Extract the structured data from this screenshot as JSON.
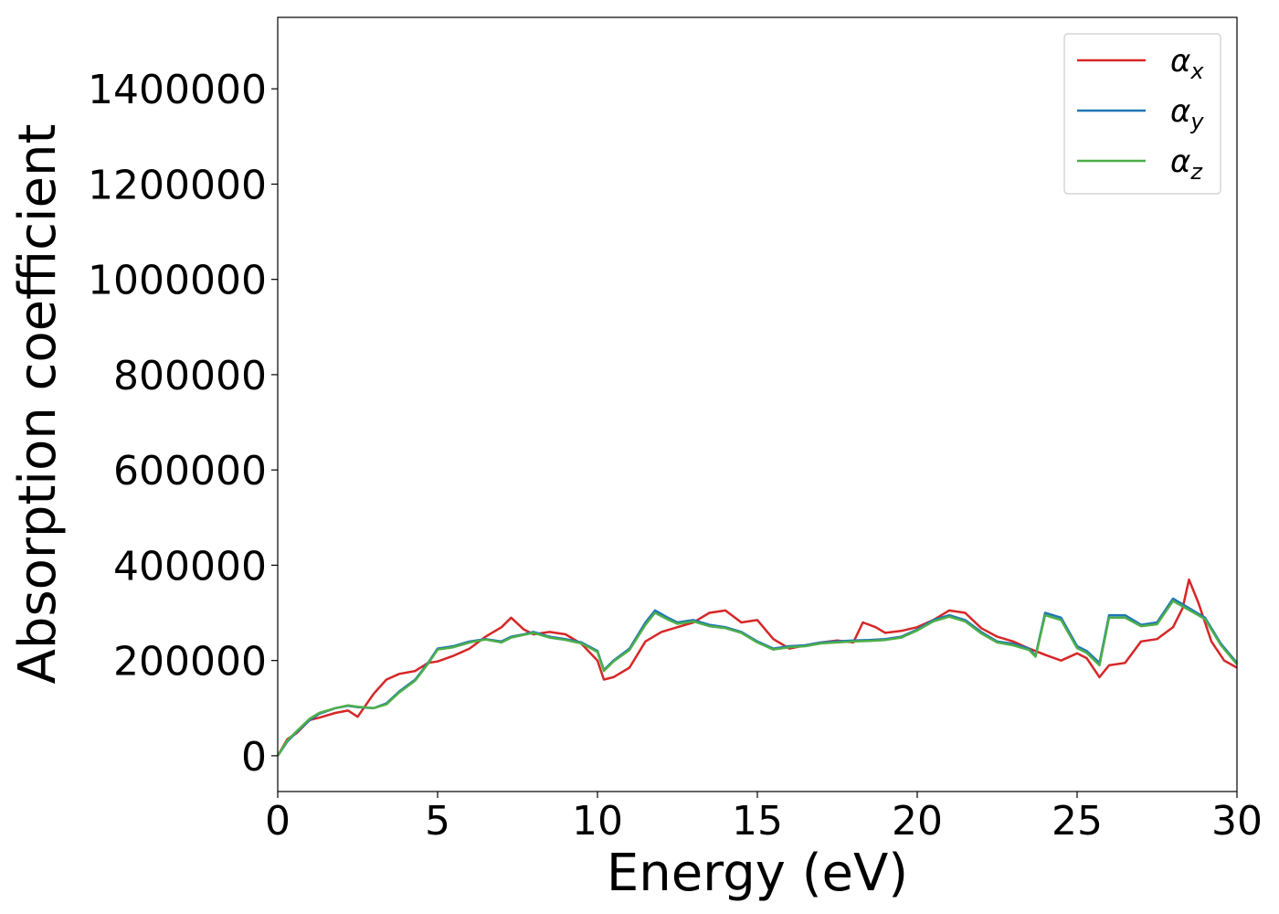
{
  "chart_data": {
    "type": "line",
    "xlabel": "Energy (eV)",
    "ylabel": "Absorption coefficient",
    "xlim": [
      0,
      30
    ],
    "ylim": [
      -75000,
      1550000
    ],
    "xticks": [
      0,
      5,
      10,
      15,
      20,
      25,
      30
    ],
    "yticks": [
      0,
      200000,
      400000,
      600000,
      800000,
      1000000,
      1200000,
      1400000
    ],
    "grid": false,
    "legend_position": "top-right",
    "series": [
      {
        "name": "α",
        "subscript": "x",
        "color": "#d62728",
        "x": [
          0,
          0.3,
          0.6,
          1.0,
          1.3,
          1.8,
          2.2,
          2.5,
          3.0,
          3.4,
          3.8,
          4.3,
          4.7,
          5.0,
          5.5,
          6.0,
          6.5,
          7.0,
          7.3,
          7.7,
          8.0,
          8.5,
          9.0,
          9.5,
          10.0,
          10.2,
          10.5,
          11.0,
          11.5,
          12.0,
          12.5,
          13.0,
          13.5,
          14.0,
          14.5,
          15.0,
          15.5,
          16.0,
          16.5,
          17.0,
          17.5,
          18.0,
          18.3,
          18.7,
          19.0,
          19.5,
          20.0,
          20.5,
          21.0,
          21.5,
          22.0,
          22.5,
          23.0,
          23.5,
          24.0,
          24.5,
          25.0,
          25.3,
          25.7,
          26.0,
          26.5,
          27.0,
          27.5,
          28.0,
          28.3,
          28.5,
          28.8,
          29.2,
          29.6,
          30.0
        ],
        "values": [
          0,
          35000,
          48000,
          75000,
          80000,
          90000,
          95000,
          82000,
          130000,
          160000,
          172000,
          178000,
          195000,
          198000,
          210000,
          225000,
          250000,
          270000,
          290000,
          265000,
          255000,
          260000,
          255000,
          235000,
          200000,
          160000,
          165000,
          185000,
          240000,
          260000,
          270000,
          280000,
          300000,
          305000,
          280000,
          285000,
          245000,
          225000,
          232000,
          238000,
          242000,
          238000,
          280000,
          270000,
          258000,
          262000,
          270000,
          285000,
          305000,
          300000,
          268000,
          250000,
          240000,
          225000,
          212000,
          200000,
          215000,
          205000,
          165000,
          190000,
          195000,
          240000,
          245000,
          270000,
          310000,
          370000,
          320000,
          240000,
          200000,
          185000
        ]
      },
      {
        "name": "α",
        "subscript": "y",
        "color": "#1f77b4",
        "x": [
          0,
          0.3,
          0.6,
          1.0,
          1.3,
          1.8,
          2.2,
          2.5,
          3.0,
          3.4,
          3.8,
          4.3,
          4.7,
          5.0,
          5.5,
          6.0,
          6.5,
          7.0,
          7.3,
          7.7,
          8.0,
          8.5,
          9.0,
          9.5,
          10.0,
          10.2,
          10.5,
          11.0,
          11.5,
          11.8,
          12.2,
          12.5,
          13.0,
          13.5,
          14.0,
          14.5,
          15.0,
          15.5,
          16.0,
          16.5,
          17.0,
          17.5,
          18.0,
          18.5,
          19.0,
          19.5,
          20.0,
          20.5,
          21.0,
          21.5,
          22.0,
          22.5,
          23.0,
          23.5,
          23.7,
          24.0,
          24.5,
          25.0,
          25.3,
          25.7,
          26.0,
          26.5,
          27.0,
          27.5,
          28.0,
          28.5,
          29.0,
          29.5,
          30.0
        ],
        "values": [
          0,
          30000,
          50000,
          75000,
          88000,
          100000,
          105000,
          102000,
          100000,
          110000,
          135000,
          160000,
          195000,
          225000,
          230000,
          240000,
          245000,
          240000,
          250000,
          255000,
          260000,
          250000,
          245000,
          238000,
          220000,
          180000,
          200000,
          225000,
          280000,
          305000,
          290000,
          280000,
          285000,
          275000,
          270000,
          260000,
          240000,
          225000,
          230000,
          232000,
          238000,
          240000,
          242000,
          243000,
          245000,
          250000,
          265000,
          285000,
          295000,
          285000,
          260000,
          240000,
          235000,
          225000,
          210000,
          300000,
          290000,
          230000,
          220000,
          195000,
          295000,
          295000,
          275000,
          280000,
          330000,
          310000,
          290000,
          235000,
          195000
        ]
      },
      {
        "name": "α",
        "subscript": "z",
        "color": "#4daf4a",
        "x": [
          0,
          0.3,
          0.6,
          1.0,
          1.3,
          1.8,
          2.2,
          2.5,
          3.0,
          3.4,
          3.8,
          4.3,
          4.7,
          5.0,
          5.5,
          6.0,
          6.5,
          7.0,
          7.3,
          7.7,
          8.0,
          8.5,
          9.0,
          9.5,
          10.0,
          10.2,
          10.5,
          11.0,
          11.5,
          11.8,
          12.2,
          12.5,
          13.0,
          13.5,
          14.0,
          14.5,
          15.0,
          15.5,
          16.0,
          16.5,
          17.0,
          17.5,
          18.0,
          18.5,
          19.0,
          19.5,
          20.0,
          20.5,
          21.0,
          21.5,
          22.0,
          22.5,
          23.0,
          23.5,
          23.7,
          24.0,
          24.5,
          25.0,
          25.3,
          25.7,
          26.0,
          26.5,
          27.0,
          27.5,
          28.0,
          28.5,
          29.0,
          29.5,
          30.0
        ],
        "values": [
          0,
          32000,
          52000,
          78000,
          90000,
          100000,
          106000,
          103000,
          100000,
          108000,
          133000,
          158000,
          193000,
          223000,
          228000,
          238000,
          244000,
          238000,
          248000,
          254000,
          258000,
          248000,
          243000,
          236000,
          218000,
          178000,
          198000,
          222000,
          275000,
          300000,
          286000,
          277000,
          282000,
          272000,
          268000,
          258000,
          238000,
          223000,
          228000,
          230000,
          236000,
          238000,
          240000,
          241000,
          243000,
          248000,
          263000,
          282000,
          292000,
          282000,
          257000,
          238000,
          232000,
          222000,
          208000,
          295000,
          285000,
          226000,
          216000,
          190000,
          290000,
          290000,
          272000,
          276000,
          325000,
          306000,
          287000,
          232000,
          192000
        ]
      }
    ]
  }
}
